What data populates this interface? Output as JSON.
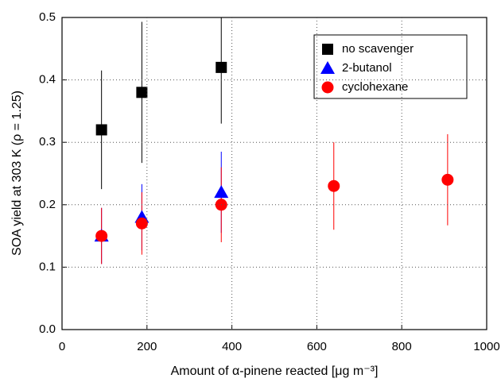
{
  "chart_data": {
    "type": "scatter",
    "x_label": "Amount of α-pinene reacted [μg m⁻³]",
    "y_label": "SOA yield at 303 K (ρ = 1.25)",
    "xlim": [
      0,
      1000
    ],
    "xticks": [
      0,
      200,
      400,
      600,
      800,
      1000
    ],
    "ylim": [
      0,
      0.5
    ],
    "yticks": [
      {
        "value": 0,
        "label": "0.0"
      },
      0.1,
      0.2,
      0.3,
      0.4,
      0.5
    ],
    "grid": true,
    "legend": "upper right",
    "series": [
      {
        "name": "no scavenger",
        "color": "#000000",
        "marker": "square",
        "x": [
          93,
          188,
          375
        ],
        "values": [
          0.32,
          0.38,
          0.42
        ],
        "errors": [
          0.095,
          0.113,
          0.09
        ]
      },
      {
        "name": "2-butanol",
        "color": "#0000ff",
        "marker": "triangle",
        "x": [
          93,
          188,
          375
        ],
        "values": [
          0.15,
          0.18,
          0.22
        ],
        "errors": [
          0.045,
          0.053,
          0.065
        ]
      },
      {
        "name": "cyclohexane",
        "color": "#ff0000",
        "marker": "circle",
        "x": [
          93,
          188,
          375,
          640,
          908
        ],
        "values": [
          0.15,
          0.17,
          0.2,
          0.23,
          0.24
        ],
        "errors": [
          0.045,
          0.05,
          0.06,
          0.07,
          0.073
        ]
      }
    ]
  }
}
